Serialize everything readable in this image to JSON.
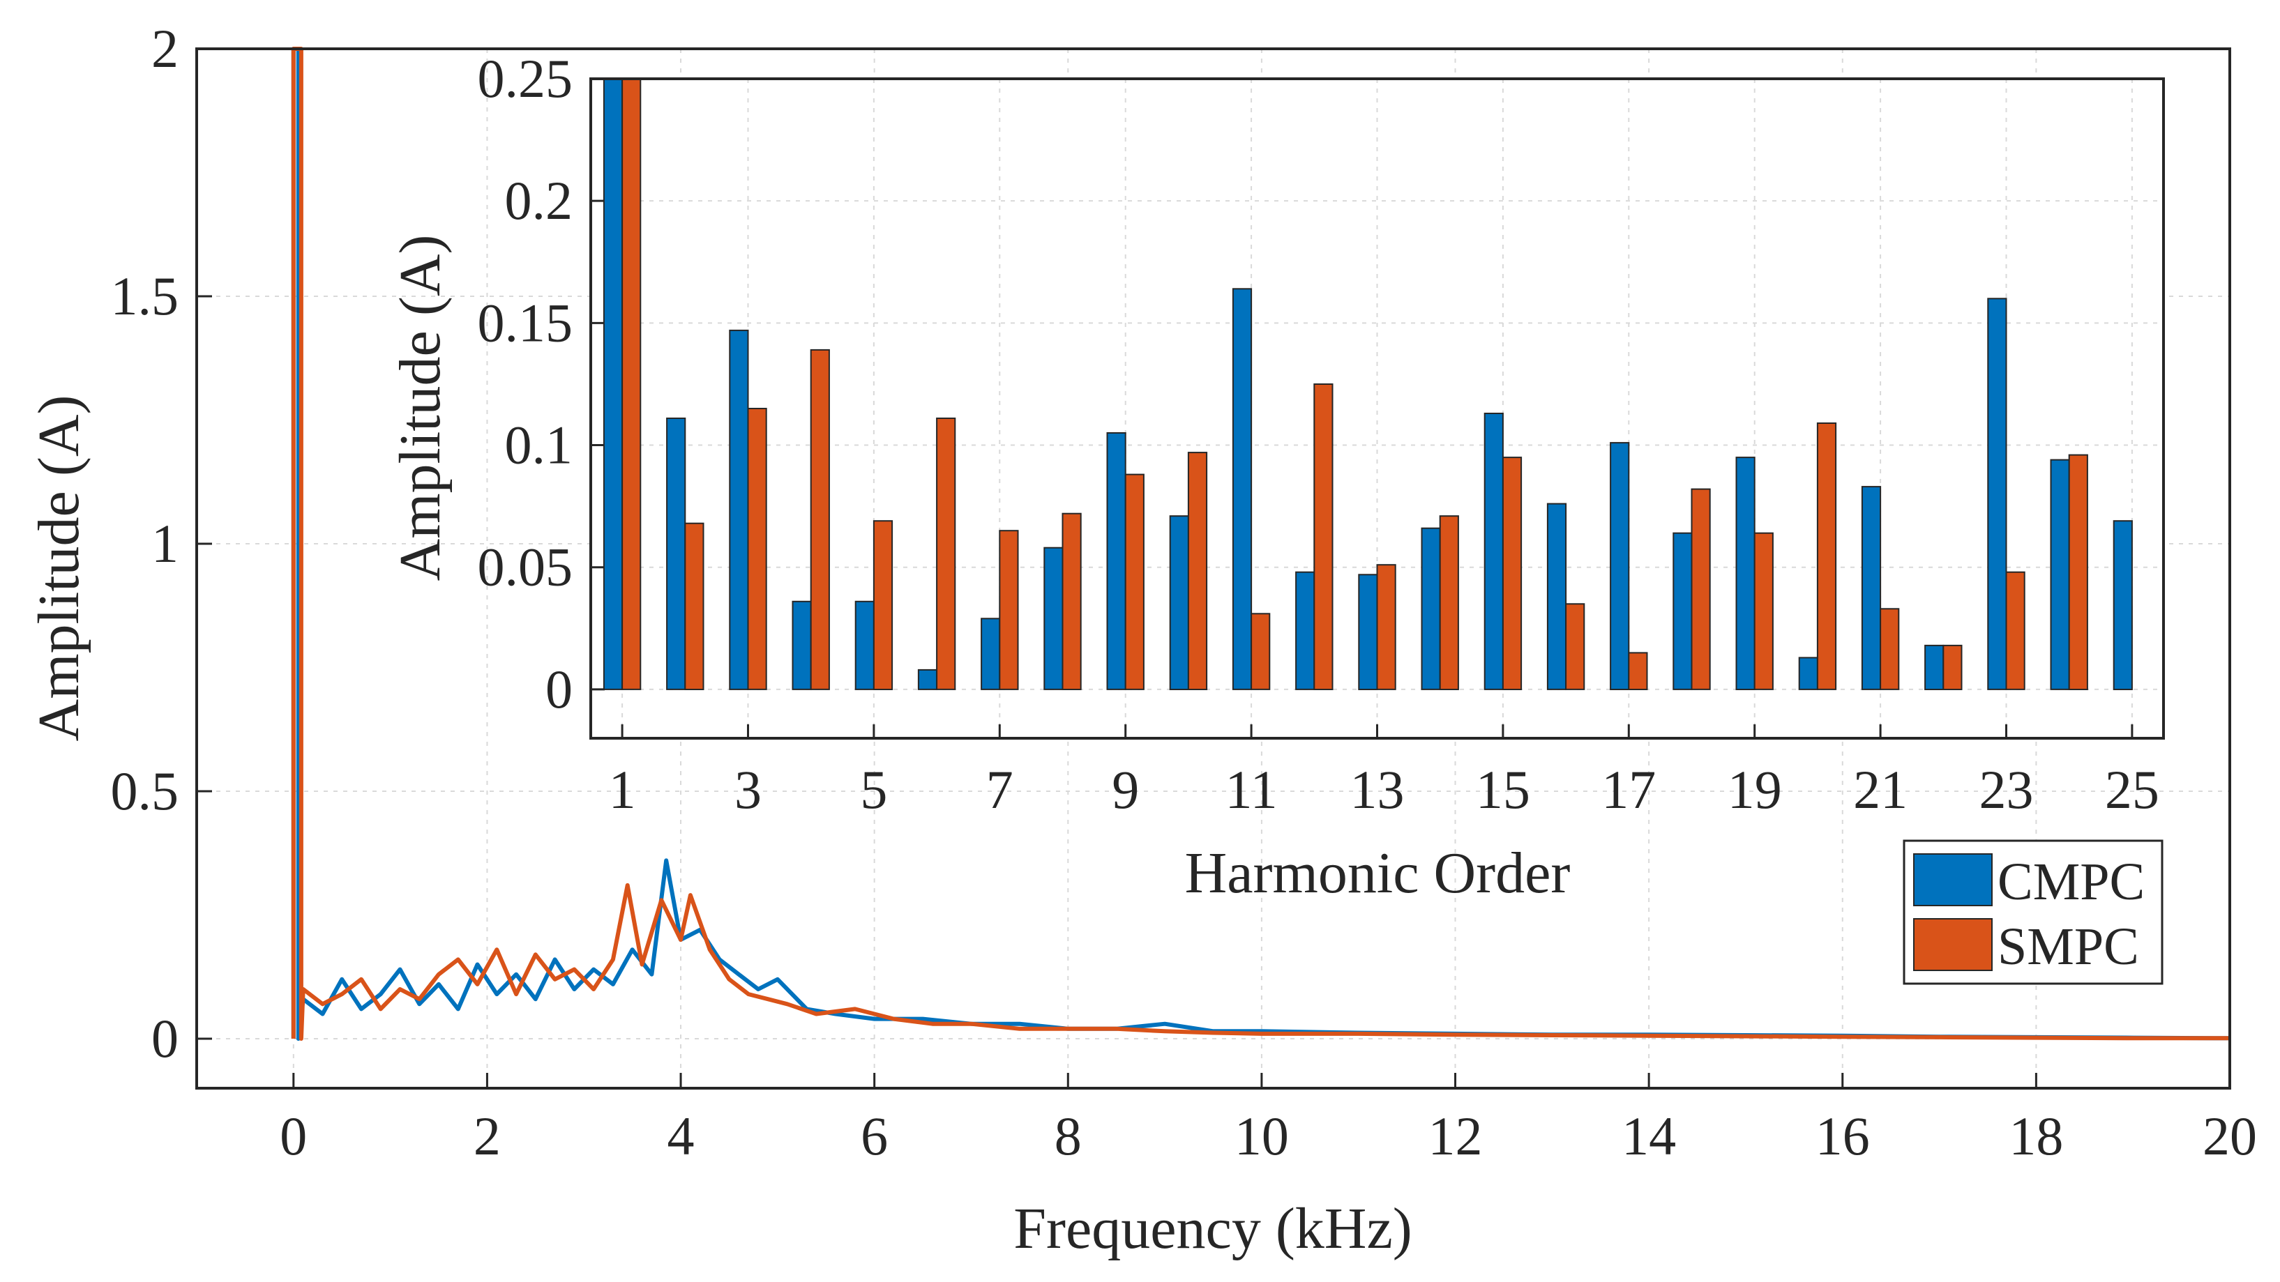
{
  "colors": {
    "cmpc": "#0072BD",
    "smpc": "#D95319",
    "axis": "#262626",
    "grid": "#d9d9d9"
  },
  "chart_data": [
    {
      "type": "line",
      "name": "main-spectrum",
      "xlabel": "Frequency (kHz)",
      "ylabel": "Amplitude (A)",
      "xlim": [
        -1,
        20
      ],
      "ylim": [
        -0.1,
        2
      ],
      "xticks": [
        0,
        2,
        4,
        6,
        8,
        10,
        12,
        14,
        16,
        18,
        20
      ],
      "xtick_labels": [
        "0",
        "2",
        "4",
        "6",
        "8",
        "10",
        "12",
        "14",
        "16",
        "18",
        "20"
      ],
      "yticks": [
        0,
        0.5,
        1,
        1.5,
        2
      ],
      "ytick_labels": [
        "0",
        "0.5",
        "1",
        "1.5",
        "2"
      ],
      "grid": true,
      "fundamental": {
        "x": 0.05,
        "y": 2.0
      },
      "series": [
        {
          "name": "CMPC",
          "x": [
            0.1,
            0.3,
            0.5,
            0.7,
            0.9,
            1.1,
            1.3,
            1.5,
            1.7,
            1.9,
            2.1,
            2.3,
            2.5,
            2.7,
            2.9,
            3.1,
            3.3,
            3.5,
            3.7,
            3.85,
            4.0,
            4.2,
            4.4,
            4.6,
            4.8,
            5.0,
            5.3,
            5.6,
            6.0,
            6.5,
            7.0,
            7.5,
            8.0,
            8.5,
            9.0,
            9.5,
            10.0,
            11.0,
            12.0,
            13.0,
            14.0,
            15.0,
            16.0,
            17.0,
            18.0,
            19.0,
            20.0
          ],
          "y": [
            0.08,
            0.05,
            0.12,
            0.06,
            0.09,
            0.14,
            0.07,
            0.11,
            0.06,
            0.15,
            0.09,
            0.13,
            0.08,
            0.16,
            0.1,
            0.14,
            0.11,
            0.18,
            0.13,
            0.36,
            0.2,
            0.22,
            0.16,
            0.13,
            0.1,
            0.12,
            0.06,
            0.05,
            0.04,
            0.04,
            0.03,
            0.03,
            0.02,
            0.02,
            0.03,
            0.015,
            0.015,
            0.012,
            0.01,
            0.008,
            0.008,
            0.007,
            0.006,
            0.004,
            0.003,
            0.002,
            0.001
          ]
        },
        {
          "name": "SMPC",
          "x": [
            0.1,
            0.3,
            0.5,
            0.7,
            0.9,
            1.1,
            1.3,
            1.5,
            1.7,
            1.9,
            2.1,
            2.3,
            2.5,
            2.7,
            2.9,
            3.1,
            3.3,
            3.45,
            3.6,
            3.8,
            4.0,
            4.1,
            4.3,
            4.5,
            4.7,
            4.9,
            5.1,
            5.4,
            5.8,
            6.2,
            6.6,
            7.0,
            7.5,
            8.0,
            8.5,
            9.0,
            9.5,
            10.0,
            11.0,
            12.0,
            13.0,
            14.0,
            15.0,
            16.0,
            17.0,
            18.0,
            19.0,
            20.0
          ],
          "y": [
            0.1,
            0.07,
            0.09,
            0.12,
            0.06,
            0.1,
            0.08,
            0.13,
            0.16,
            0.11,
            0.18,
            0.09,
            0.17,
            0.12,
            0.14,
            0.1,
            0.16,
            0.31,
            0.15,
            0.28,
            0.2,
            0.29,
            0.18,
            0.12,
            0.09,
            0.08,
            0.07,
            0.05,
            0.06,
            0.04,
            0.03,
            0.03,
            0.02,
            0.02,
            0.02,
            0.015,
            0.012,
            0.01,
            0.01,
            0.008,
            0.007,
            0.006,
            0.005,
            0.004,
            0.003,
            0.002,
            0.001,
            0.001
          ]
        }
      ],
      "legend": {
        "location": "bottom-right",
        "entries": [
          "CMPC",
          "SMPC"
        ]
      }
    },
    {
      "type": "bar",
      "name": "inset-harmonics",
      "xlabel": "Harmonic Order",
      "ylabel": "Amplitude (A)",
      "ylim": [
        -0.02,
        0.25
      ],
      "xlim": [
        0.5,
        25.5
      ],
      "yticks": [
        0,
        0.05,
        0.1,
        0.15,
        0.2,
        0.25
      ],
      "ytick_labels": [
        "0",
        "0.05",
        "0.1",
        "0.15",
        "0.2",
        "0.25"
      ],
      "xtick_labels": [
        "1",
        "3",
        "5",
        "7",
        "9",
        "11",
        "13",
        "15",
        "17",
        "19",
        "21",
        "23",
        "25"
      ],
      "grid": true,
      "categories": [
        1,
        2,
        3,
        4,
        5,
        6,
        7,
        8,
        9,
        10,
        11,
        12,
        13,
        14,
        15,
        16,
        17,
        18,
        19,
        20,
        21,
        22,
        23,
        24,
        25
      ],
      "series": [
        {
          "name": "CMPC",
          "values": [
            0.25,
            0.111,
            0.147,
            0.036,
            0.036,
            0.008,
            0.029,
            0.058,
            0.105,
            0.071,
            0.164,
            0.048,
            0.047,
            0.066,
            0.113,
            0.076,
            0.101,
            0.064,
            0.095,
            0.013,
            0.083,
            0.018,
            0.16,
            0.094,
            0.069
          ]
        },
        {
          "name": "SMPC",
          "values": [
            0.25,
            0.068,
            0.115,
            0.139,
            0.069,
            0.111,
            0.065,
            0.072,
            0.088,
            0.097,
            0.031,
            0.125,
            0.051,
            0.071,
            0.095,
            0.035,
            0.015,
            0.082,
            0.064,
            0.109,
            0.033,
            0.018,
            0.048,
            0.096,
            0.0
          ]
        }
      ]
    }
  ]
}
